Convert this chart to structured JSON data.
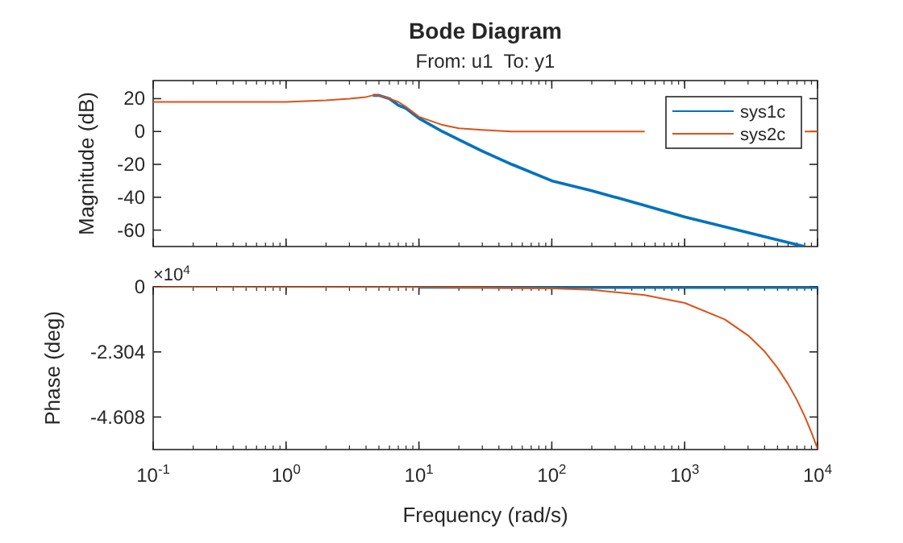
{
  "chart_data": [
    {
      "type": "line",
      "title": "Bode Diagram",
      "subtitle": "From: u1  To: y1",
      "ylabel": "Magnitude (dB)",
      "log": "x",
      "tick_labels": "y",
      "legend": "top right",
      "xlim": [
        0.1,
        10000
      ],
      "xticks": [
        {
          "value": 0.1,
          "label": null
        },
        {
          "value": 1,
          "label": null
        },
        {
          "value": 10,
          "label": null
        },
        {
          "value": 100,
          "label": null
        },
        {
          "value": 1000,
          "label": null
        },
        {
          "value": 10000,
          "label": null
        }
      ],
      "ylim": [
        -70,
        31
      ],
      "yticks": [
        -60,
        -40,
        -20,
        0,
        20
      ],
      "series": [
        {
          "name": "sys1c",
          "color": "#0072bd",
          "x": [
            4.5,
            5,
            6,
            7,
            8,
            10,
            15,
            20,
            30,
            50,
            100,
            200,
            500,
            1000,
            2000,
            5000,
            8000
          ],
          "values": [
            22,
            22,
            20,
            16,
            14,
            8,
            0,
            -5,
            -12,
            -20,
            -30,
            -36,
            -45,
            -52,
            -58,
            -66,
            -70
          ]
        },
        {
          "name": "sys2c",
          "color": "#d95319",
          "x": [
            0.1,
            0.3,
            1,
            2,
            3,
            4,
            4.5,
            5,
            6,
            7,
            8,
            10,
            15,
            20,
            30,
            50,
            100,
            200,
            500,
            1000,
            2000,
            5000,
            8000,
            10000
          ],
          "values": [
            18,
            18,
            18,
            19,
            20,
            21,
            22,
            22,
            20,
            18,
            15,
            9,
            4,
            2,
            1,
            0,
            0,
            0,
            0,
            null,
            null,
            null,
            0,
            0
          ]
        }
      ]
    },
    {
      "type": "line",
      "xlabel": "Frequency (rad/s)",
      "ylabel": "Phase (deg)",
      "log": "x",
      "annotations": [
        "×10$^{4}$"
      ],
      "xlim": [
        0.1,
        10000
      ],
      "xticks": [
        {
          "value": 0.1,
          "label": "10$^{-1}$"
        },
        {
          "value": 1,
          "label": "10$^{0}$"
        },
        {
          "value": 10,
          "label": "10$^{1}$"
        },
        {
          "value": 100,
          "label": "10$^{2}$"
        },
        {
          "value": 1000,
          "label": "10$^{3}$"
        },
        {
          "value": 10000,
          "label": "10$^{4}$"
        }
      ],
      "ylim": [
        -5.76,
        0
      ],
      "yticks": [
        -4.608,
        -2.304,
        0
      ],
      "series": [
        {
          "color": "#0072bd",
          "x": [
            10,
            100,
            1000,
            10000
          ],
          "values": [
            -0.01,
            -0.02,
            -0.02,
            -0.02
          ]
        },
        {
          "color": "#d95319",
          "x": [
            0.1,
            10,
            100,
            200,
            500,
            1000,
            2000,
            3000,
            4000,
            5000,
            6000,
            7000,
            8000,
            9000,
            10000
          ],
          "values": [
            0,
            -0.01,
            -0.06,
            -0.11,
            -0.29,
            -0.57,
            -1.15,
            -1.72,
            -2.29,
            -2.87,
            -3.44,
            -4.01,
            -4.58,
            -5.16,
            -5.73
          ]
        }
      ]
    }
  ]
}
